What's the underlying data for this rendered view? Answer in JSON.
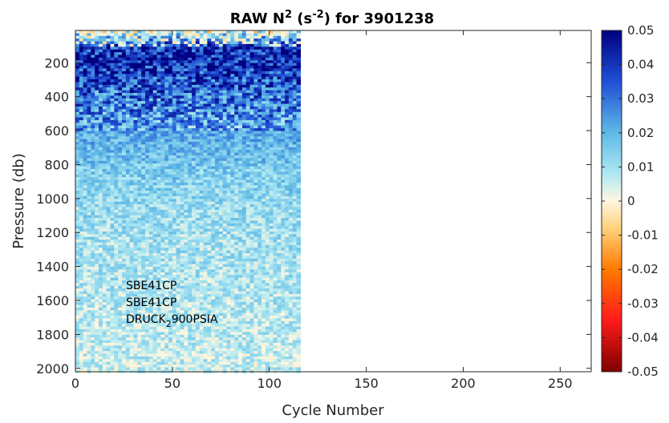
{
  "chart_data": {
    "type": "heatmap",
    "title": {
      "main": "RAW N",
      "sup1": "2",
      "mid": " (s",
      "sup2": "-2",
      "end": ") for 3901238"
    },
    "xlabel": "Cycle Number",
    "ylabel": "Pressure (db)",
    "xlim": [
      0,
      266
    ],
    "ylim": [
      2020,
      10
    ],
    "xticks": [
      0,
      50,
      100,
      150,
      200,
      250
    ],
    "yticks": [
      200,
      400,
      600,
      800,
      1000,
      1200,
      1400,
      1600,
      1800,
      2000
    ],
    "colorbar": {
      "range": [
        -0.05,
        0.05
      ],
      "ticks": [
        0.05,
        0.04,
        0.03,
        0.02,
        0.01,
        0,
        -0.01,
        -0.02,
        -0.03,
        -0.04,
        -0.05
      ],
      "tick_labels": [
        "0.05",
        "0.04",
        "0.03",
        "0.02",
        "0.01",
        "0",
        "-0.01",
        "-0.02",
        "-0.03",
        "-0.04",
        "-0.05"
      ],
      "colormap_stops": [
        {
          "v": -0.05,
          "c": "#7f0000"
        },
        {
          "v": -0.035,
          "c": "#ff1a1a"
        },
        {
          "v": -0.02,
          "c": "#ff7a00"
        },
        {
          "v": -0.008,
          "c": "#ffd27a"
        },
        {
          "v": 0.0,
          "c": "#fff7e0"
        },
        {
          "v": 0.008,
          "c": "#aee8f2"
        },
        {
          "v": 0.02,
          "c": "#5fb9e6"
        },
        {
          "v": 0.035,
          "c": "#1f4fd6"
        },
        {
          "v": 0.05,
          "c": "#00007f"
        }
      ]
    },
    "data_extent": {
      "cycle_min": 1,
      "cycle_max": 116,
      "pressure_min": 10,
      "pressure_max": 2020
    },
    "profile": {
      "pressure": [
        10,
        50,
        100,
        200,
        400,
        600,
        800,
        1000,
        1200,
        1400,
        1600,
        1800,
        2000
      ],
      "mean_n2": [
        0.005,
        0.02,
        0.04,
        0.042,
        0.03,
        0.022,
        0.016,
        0.012,
        0.01,
        0.009,
        0.008,
        0.007,
        0.006
      ]
    },
    "annotations": [
      {
        "text": "SBE41CP"
      },
      {
        "text": "SBE41CP"
      },
      {
        "text": "DRUCK",
        "sub": "2",
        "rest": "900PSIA"
      }
    ]
  }
}
